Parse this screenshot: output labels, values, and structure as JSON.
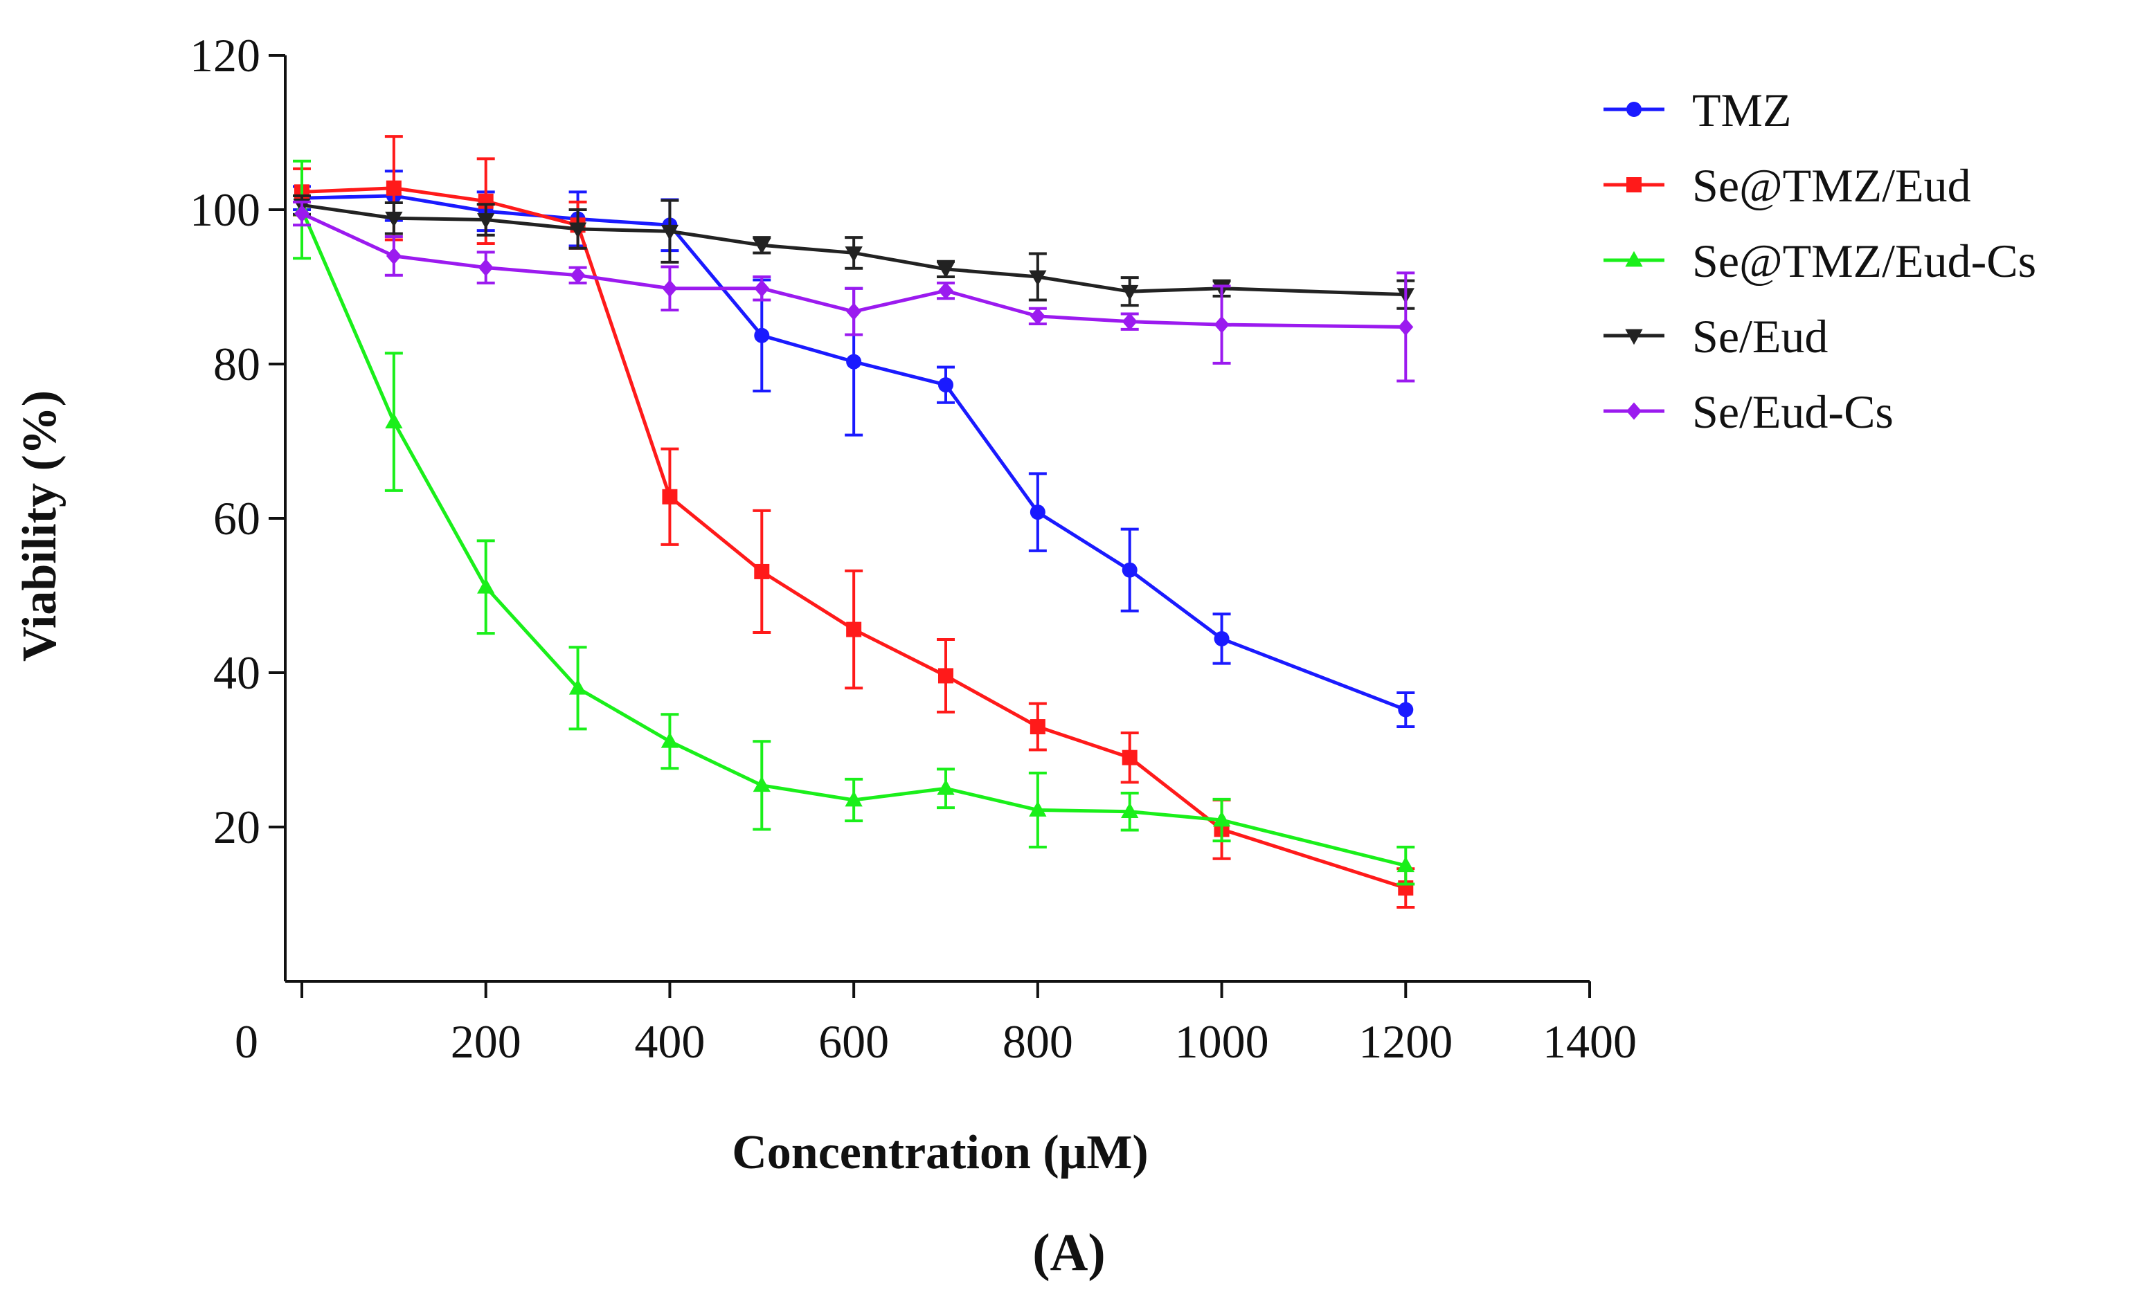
{
  "chart_data": {
    "type": "line",
    "xlabel": "Concentration (μM)",
    "ylabel": "Viability (%)",
    "panel_label": "(A)",
    "xlim": [
      0,
      1400
    ],
    "ylim": [
      0,
      120
    ],
    "x_ticks": [
      0,
      200,
      400,
      600,
      800,
      1000,
      1200,
      1400
    ],
    "y_ticks": [
      20,
      40,
      60,
      80,
      100,
      120
    ],
    "x_tick_labels": [
      "0",
      "200",
      "400",
      "600",
      "800",
      "1000",
      "1200",
      "1400"
    ],
    "y_tick_labels": [
      "20",
      "40",
      "60",
      "80",
      "100",
      "120"
    ],
    "legend_position": "right",
    "series": [
      {
        "name": "TMZ",
        "color": "#1a1aff",
        "marker": "circle",
        "x": [
          0,
          100,
          200,
          300,
          400,
          500,
          600,
          700,
          800,
          900,
          1000,
          1200
        ],
        "values": [
          101.5,
          101.8,
          99.8,
          98.8,
          98.0,
          83.7,
          80.3,
          77.3,
          60.8,
          53.3,
          44.4,
          35.2
        ],
        "errors": [
          1.5,
          3.2,
          2.5,
          3.5,
          3.3,
          7.2,
          9.5,
          2.3,
          5.0,
          5.3,
          3.2,
          2.2
        ]
      },
      {
        "name": "Se@TMZ/Eud",
        "color": "#ff1a1a",
        "marker": "square",
        "x": [
          0,
          100,
          200,
          300,
          400,
          500,
          600,
          700,
          800,
          900,
          1000,
          1200
        ],
        "values": [
          102.3,
          102.8,
          101.1,
          98.0,
          62.8,
          53.1,
          45.6,
          39.6,
          33.0,
          29.0,
          19.7,
          12.1
        ],
        "errors": [
          3.0,
          6.7,
          5.5,
          3.0,
          6.2,
          7.9,
          7.6,
          4.7,
          3.0,
          3.2,
          3.8,
          2.5
        ]
      },
      {
        "name": "Se@TMZ/Eud-Cs",
        "color": "#1aef1a",
        "marker": "triangle-up",
        "x": [
          0,
          100,
          200,
          300,
          400,
          500,
          600,
          700,
          800,
          900,
          1000,
          1200
        ],
        "values": [
          100.0,
          72.5,
          51.1,
          38.0,
          31.1,
          25.4,
          23.5,
          25.0,
          22.2,
          22.0,
          20.9,
          15.0
        ],
        "errors": [
          6.3,
          8.9,
          6.0,
          5.3,
          3.5,
          5.7,
          2.7,
          2.5,
          4.8,
          2.4,
          2.7,
          2.4
        ]
      },
      {
        "name": "Se/Eud",
        "color": "#222222",
        "marker": "triangle-down",
        "x": [
          0,
          100,
          200,
          300,
          400,
          500,
          600,
          700,
          800,
          900,
          1000,
          1200
        ],
        "values": [
          100.6,
          98.9,
          98.7,
          97.5,
          97.2,
          95.4,
          94.4,
          92.3,
          91.3,
          89.4,
          89.8,
          89.0
        ],
        "errors": [
          1.2,
          2.0,
          2.0,
          2.5,
          4.0,
          1.0,
          2.0,
          1.0,
          3.0,
          1.8,
          1.0,
          1.8
        ]
      },
      {
        "name": "Se/Eud-Cs",
        "color": "#9b1aef",
        "marker": "diamond",
        "x": [
          0,
          100,
          200,
          300,
          400,
          500,
          600,
          700,
          800,
          900,
          1000,
          1200
        ],
        "values": [
          99.5,
          94.0,
          92.5,
          91.5,
          89.8,
          89.8,
          86.8,
          89.5,
          86.2,
          85.5,
          85.1,
          84.8
        ],
        "errors": [
          1.5,
          2.5,
          2.0,
          1.0,
          2.8,
          1.5,
          3.0,
          1.0,
          1.0,
          1.0,
          5.0,
          7.0
        ]
      }
    ]
  }
}
